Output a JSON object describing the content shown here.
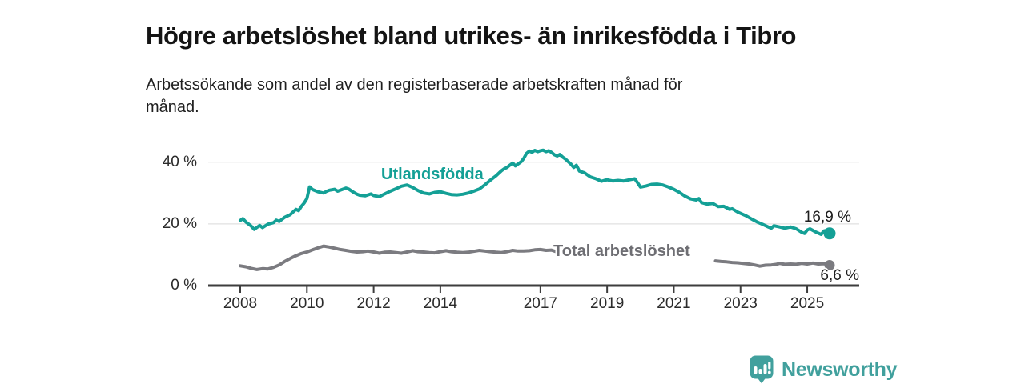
{
  "footer": {
    "brand": "Newsworthy"
  },
  "chart_data": {
    "type": "line",
    "title": "Högre arbetslöshet bland utrikes- än inrikesfödda i Tibro",
    "subtitle": "Arbetssökande som andel av den registerbaserade arbetskraften månad för månad.",
    "xlabel": "",
    "ylabel": "",
    "grid": "horizontal",
    "legend_position": "inline-labels",
    "x_ticks": [
      2008,
      2010,
      2012,
      2014,
      2017,
      2019,
      2021,
      2023,
      2025
    ],
    "y_ticks": [
      0,
      20,
      40
    ],
    "y_tick_labels": [
      "0 %",
      "20 %",
      "40 %"
    ],
    "ylim": [
      0,
      46
    ],
    "xlim": [
      2006.8,
      2026.6
    ],
    "colors": {
      "utlandsfodda": "#14a096",
      "total": "#7b7b80",
      "gridline": "#d9d9d9",
      "axis": "#3d3d3d",
      "logo_teal": "#41a09d"
    },
    "series": [
      {
        "name": "Utlandsfödda",
        "color": "#14a096",
        "end_label": "16,9 %",
        "end_value": 16.9,
        "segments": [
          [
            [
              2008.0,
              21.1
            ],
            [
              2008.08,
              21.7
            ],
            [
              2008.17,
              20.6
            ],
            [
              2008.33,
              19.3
            ],
            [
              2008.42,
              18.2
            ],
            [
              2008.58,
              19.5
            ],
            [
              2008.67,
              18.8
            ],
            [
              2008.83,
              19.9
            ],
            [
              2009.0,
              20.4
            ],
            [
              2009.08,
              21.2
            ],
            [
              2009.17,
              20.8
            ],
            [
              2009.33,
              22.1
            ],
            [
              2009.5,
              23.0
            ],
            [
              2009.58,
              23.8
            ],
            [
              2009.67,
              24.7
            ],
            [
              2009.75,
              24.3
            ],
            [
              2009.83,
              25.6
            ],
            [
              2009.92,
              26.8
            ],
            [
              2010.0,
              28.2
            ],
            [
              2010.08,
              32.0
            ],
            [
              2010.17,
              31.1
            ],
            [
              2010.33,
              30.4
            ],
            [
              2010.5,
              30.0
            ],
            [
              2010.58,
              30.5
            ],
            [
              2010.67,
              30.9
            ],
            [
              2010.83,
              31.2
            ],
            [
              2010.92,
              30.6
            ],
            [
              2011.0,
              30.9
            ],
            [
              2011.17,
              31.6
            ],
            [
              2011.25,
              31.3
            ],
            [
              2011.42,
              30.1
            ],
            [
              2011.5,
              29.6
            ],
            [
              2011.58,
              29.3
            ],
            [
              2011.75,
              29.1
            ],
            [
              2011.92,
              29.7
            ],
            [
              2012.0,
              29.2
            ],
            [
              2012.17,
              28.8
            ],
            [
              2012.33,
              29.7
            ],
            [
              2012.5,
              30.6
            ],
            [
              2012.67,
              31.4
            ],
            [
              2012.83,
              32.2
            ],
            [
              2013.0,
              32.6
            ],
            [
              2013.17,
              31.8
            ],
            [
              2013.33,
              30.8
            ],
            [
              2013.5,
              30.0
            ],
            [
              2013.67,
              29.7
            ],
            [
              2013.83,
              30.2
            ],
            [
              2014.0,
              30.4
            ],
            [
              2014.17,
              29.9
            ],
            [
              2014.33,
              29.5
            ],
            [
              2014.5,
              29.4
            ],
            [
              2014.67,
              29.6
            ],
            [
              2014.83,
              30.0
            ],
            [
              2015.0,
              30.6
            ],
            [
              2015.17,
              31.3
            ],
            [
              2015.33,
              32.6
            ],
            [
              2015.5,
              34.2
            ],
            [
              2015.67,
              35.6
            ],
            [
              2015.83,
              37.2
            ],
            [
              2015.92,
              37.9
            ],
            [
              2016.0,
              38.3
            ],
            [
              2016.08,
              39.0
            ],
            [
              2016.17,
              39.7
            ],
            [
              2016.25,
              38.8
            ],
            [
              2016.33,
              39.4
            ],
            [
              2016.42,
              40.1
            ],
            [
              2016.5,
              41.2
            ],
            [
              2016.58,
              42.8
            ],
            [
              2016.67,
              43.6
            ],
            [
              2016.75,
              43.2
            ],
            [
              2016.83,
              43.8
            ],
            [
              2016.92,
              43.4
            ],
            [
              2017.0,
              43.7
            ],
            [
              2017.08,
              43.9
            ],
            [
              2017.17,
              43.4
            ],
            [
              2017.25,
              43.7
            ],
            [
              2017.33,
              43.2
            ],
            [
              2017.42,
              42.4
            ],
            [
              2017.5,
              42.0
            ],
            [
              2017.58,
              42.5
            ],
            [
              2017.67,
              41.6
            ],
            [
              2017.75,
              41.0
            ],
            [
              2017.83,
              40.2
            ],
            [
              2017.92,
              39.3
            ],
            [
              2018.0,
              38.3
            ],
            [
              2018.08,
              39.0
            ],
            [
              2018.17,
              37.1
            ],
            [
              2018.33,
              36.5
            ],
            [
              2018.5,
              35.2
            ],
            [
              2018.67,
              34.6
            ],
            [
              2018.83,
              33.8
            ],
            [
              2018.92,
              34.1
            ],
            [
              2019.0,
              34.3
            ],
            [
              2019.17,
              33.9
            ],
            [
              2019.33,
              34.1
            ],
            [
              2019.5,
              33.9
            ],
            [
              2019.67,
              34.3
            ],
            [
              2019.83,
              34.6
            ],
            [
              2019.92,
              33.2
            ],
            [
              2020.0,
              31.9
            ],
            [
              2020.17,
              32.3
            ],
            [
              2020.33,
              32.8
            ],
            [
              2020.5,
              32.9
            ],
            [
              2020.67,
              32.6
            ],
            [
              2020.83,
              32.0
            ],
            [
              2021.0,
              31.2
            ],
            [
              2021.17,
              30.2
            ],
            [
              2021.33,
              29.0
            ],
            [
              2021.5,
              28.1
            ],
            [
              2021.67,
              27.7
            ],
            [
              2021.75,
              28.2
            ],
            [
              2021.83,
              26.9
            ],
            [
              2022.0,
              26.4
            ],
            [
              2022.17,
              26.6
            ],
            [
              2022.33,
              25.6
            ],
            [
              2022.5,
              25.7
            ],
            [
              2022.67,
              24.7
            ],
            [
              2022.75,
              24.9
            ],
            [
              2022.92,
              23.8
            ],
            [
              2023.0,
              23.4
            ],
            [
              2023.17,
              22.6
            ],
            [
              2023.33,
              21.6
            ],
            [
              2023.5,
              20.6
            ],
            [
              2023.67,
              19.8
            ],
            [
              2023.83,
              19.0
            ],
            [
              2023.92,
              18.6
            ],
            [
              2024.0,
              19.4
            ],
            [
              2024.17,
              19.0
            ],
            [
              2024.33,
              18.6
            ],
            [
              2024.5,
              19.0
            ],
            [
              2024.67,
              18.4
            ],
            [
              2024.83,
              17.3
            ],
            [
              2024.92,
              16.9
            ],
            [
              2025.0,
              18.0
            ],
            [
              2025.08,
              18.4
            ],
            [
              2025.25,
              17.4
            ],
            [
              2025.42,
              16.6
            ],
            [
              2025.5,
              17.7
            ],
            [
              2025.58,
              17.9
            ],
            [
              2025.67,
              16.9
            ]
          ]
        ]
      },
      {
        "name": "Total arbetslöshet",
        "color": "#7b7b80",
        "end_label": "6,6 %",
        "end_value": 6.6,
        "segments": [
          [
            [
              2008.0,
              6.4
            ],
            [
              2008.17,
              6.1
            ],
            [
              2008.33,
              5.6
            ],
            [
              2008.5,
              5.2
            ],
            [
              2008.67,
              5.5
            ],
            [
              2008.83,
              5.4
            ],
            [
              2009.0,
              5.9
            ],
            [
              2009.17,
              6.7
            ],
            [
              2009.33,
              7.8
            ],
            [
              2009.5,
              8.8
            ],
            [
              2009.67,
              9.7
            ],
            [
              2009.83,
              10.4
            ],
            [
              2010.0,
              10.9
            ],
            [
              2010.17,
              11.6
            ],
            [
              2010.33,
              12.2
            ],
            [
              2010.5,
              12.8
            ],
            [
              2010.67,
              12.5
            ],
            [
              2010.83,
              12.1
            ],
            [
              2011.0,
              11.7
            ],
            [
              2011.17,
              11.4
            ],
            [
              2011.33,
              11.1
            ],
            [
              2011.5,
              10.9
            ],
            [
              2011.67,
              11.0
            ],
            [
              2011.83,
              11.2
            ],
            [
              2012.0,
              10.9
            ],
            [
              2012.17,
              10.5
            ],
            [
              2012.33,
              10.8
            ],
            [
              2012.5,
              10.9
            ],
            [
              2012.67,
              10.7
            ],
            [
              2012.83,
              10.5
            ],
            [
              2013.0,
              10.9
            ],
            [
              2013.17,
              11.3
            ],
            [
              2013.33,
              11.0
            ],
            [
              2013.5,
              10.9
            ],
            [
              2013.67,
              10.7
            ],
            [
              2013.83,
              10.6
            ],
            [
              2014.0,
              11.0
            ],
            [
              2014.17,
              11.3
            ],
            [
              2014.33,
              11.0
            ],
            [
              2014.5,
              10.8
            ],
            [
              2014.67,
              10.7
            ],
            [
              2014.83,
              10.8
            ],
            [
              2015.0,
              11.1
            ],
            [
              2015.17,
              11.4
            ],
            [
              2015.33,
              11.2
            ],
            [
              2015.5,
              11.0
            ],
            [
              2015.67,
              10.8
            ],
            [
              2015.83,
              10.7
            ],
            [
              2016.0,
              11.0
            ],
            [
              2016.17,
              11.4
            ],
            [
              2016.33,
              11.2
            ],
            [
              2016.5,
              11.2
            ],
            [
              2016.67,
              11.3
            ],
            [
              2016.83,
              11.6
            ],
            [
              2017.0,
              11.7
            ],
            [
              2017.17,
              11.4
            ],
            [
              2017.33,
              11.5
            ],
            [
              2017.5,
              10.9
            ]
          ],
          [
            [
              2022.25,
              8.0
            ],
            [
              2022.42,
              7.8
            ],
            [
              2022.58,
              7.7
            ],
            [
              2022.75,
              7.5
            ],
            [
              2022.92,
              7.4
            ],
            [
              2023.08,
              7.2
            ],
            [
              2023.25,
              7.0
            ],
            [
              2023.42,
              6.7
            ],
            [
              2023.58,
              6.3
            ],
            [
              2023.75,
              6.6
            ],
            [
              2023.92,
              6.7
            ],
            [
              2024.08,
              6.9
            ],
            [
              2024.17,
              7.2
            ],
            [
              2024.33,
              6.9
            ],
            [
              2024.5,
              7.0
            ],
            [
              2024.67,
              6.9
            ],
            [
              2024.83,
              7.2
            ],
            [
              2025.0,
              7.0
            ],
            [
              2025.17,
              7.3
            ],
            [
              2025.33,
              7.0
            ],
            [
              2025.5,
              7.1
            ],
            [
              2025.58,
              6.9
            ],
            [
              2025.67,
              6.6
            ]
          ]
        ]
      }
    ]
  }
}
